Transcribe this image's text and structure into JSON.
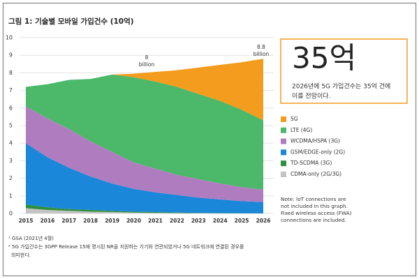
{
  "chart_data": {
    "type": "stacked-area",
    "title": "그림 1: 기술별 모바일 가입건수 (10억)",
    "x": [
      2015,
      2016,
      2017,
      2018,
      2019,
      2020,
      2021,
      2022,
      2023,
      2024,
      2025,
      2026
    ],
    "xlim": [
      2015,
      2026
    ],
    "xticks": [
      2015,
      2016,
      2017,
      2018,
      2019,
      2020,
      2021,
      2022,
      2023,
      2024,
      2025,
      2026
    ],
    "ylim": [
      0,
      10
    ],
    "yticks": [
      0,
      1,
      2,
      3,
      4,
      5,
      6,
      7,
      8,
      9,
      10
    ],
    "grid": true,
    "series": [
      {
        "name": "CDMA-only (2G/3G)",
        "color": "#c4c4c4",
        "values": [
          0.3,
          0.2,
          0.15,
          0.1,
          0.08,
          0.05,
          0.03,
          0.02,
          0.01,
          0.01,
          0,
          0
        ]
      },
      {
        "name": "TD-SCDMA (3G)",
        "color": "#2e8f3e",
        "values": [
          0.2,
          0.15,
          0.1,
          0.1,
          0.07,
          0.05,
          0.05,
          0.03,
          0.02,
          0.01,
          0.01,
          0
        ]
      },
      {
        "name": "GSM/EDGE-only (2G)",
        "color": "#1b87d8",
        "values": [
          3.5,
          2.85,
          2.35,
          1.9,
          1.55,
          1.3,
          1.12,
          1.0,
          0.87,
          0.78,
          0.69,
          0.65
        ]
      },
      {
        "name": "WCDMA/HSPA (3G)",
        "color": "#b07cc0",
        "values": [
          2.1,
          2.2,
          2.2,
          2.0,
          1.8,
          1.5,
          1.35,
          1.15,
          1.05,
          0.9,
          0.8,
          0.7
        ]
      },
      {
        "name": "LTE (4G)",
        "color": "#4cb86a",
        "values": [
          1.1,
          1.95,
          2.8,
          3.55,
          4.4,
          4.85,
          4.95,
          5.0,
          4.85,
          4.7,
          4.4,
          3.95
        ]
      },
      {
        "name": "5G",
        "color": "#f39c1e",
        "values": [
          0,
          0,
          0,
          0,
          0,
          0.2,
          0.55,
          0.95,
          1.5,
          2.05,
          2.7,
          3.5
        ]
      }
    ],
    "annotations": [
      [
        "8",
        "billion"
      ],
      [
        "8.8",
        "billion"
      ]
    ],
    "callout": {
      "headline": "35억",
      "lines": [
        "2026년에 5G 가입건수는 35억 건에",
        "이를 전망이다."
      ]
    },
    "note": [
      "Note: IoT connections are",
      "not included in this graph.",
      "Fixed wireless access (FWA)",
      "connections are included."
    ],
    "footnotes": [
      "¹ GSA (2021년 4월)",
      "² 5G 가입건수는 3GPP Release 15에 명시된 NR을 지원하는 기기와 연관되었거나 5G 네트워크에 연결된 경우를",
      "의미한다."
    ]
  }
}
